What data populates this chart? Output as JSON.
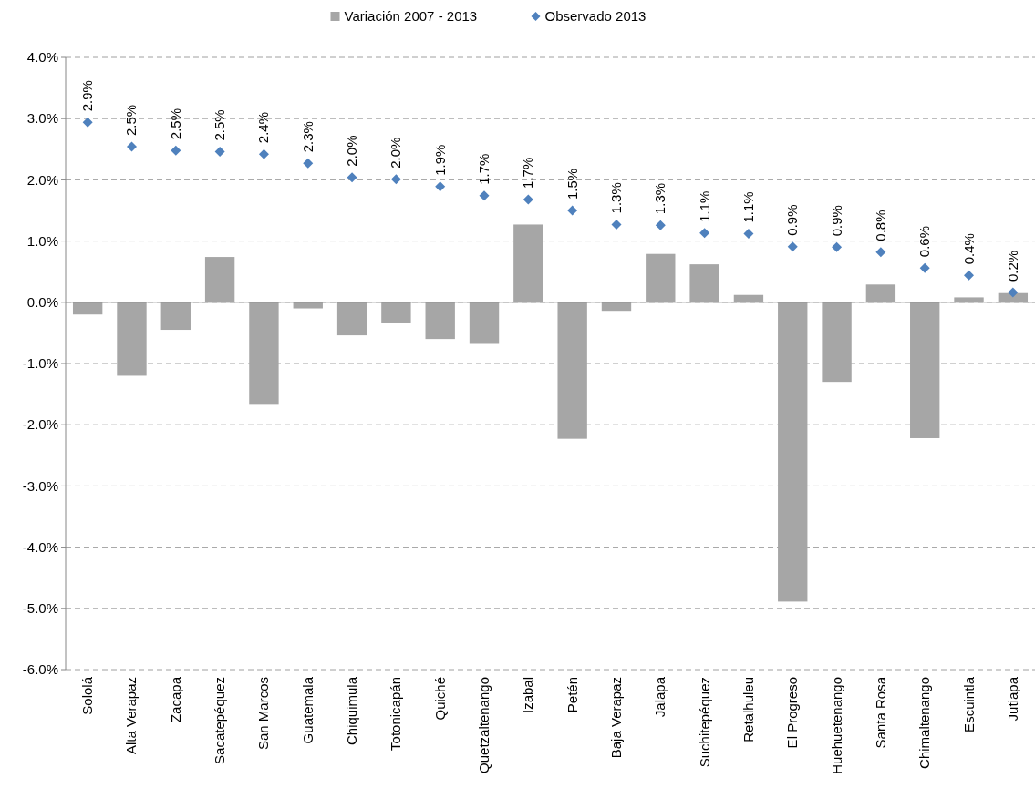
{
  "chart_data": {
    "type": "bar",
    "categories": [
      "Sololá",
      "Alta Verapaz",
      "Zacapa",
      "Sacatepéquez",
      "San Marcos",
      "Guatemala",
      "Chiquimula",
      "Totonicapán",
      "Quiché",
      "Quetzaltenango",
      "Izabal",
      "Petén",
      "Baja Verapaz",
      "Jalapa",
      "Suchitepéquez",
      "Retalhuleu",
      "El Progreso",
      "Huehuetenango",
      "Santa Rosa",
      "Chimaltenango",
      "Escuintla",
      "Jutiapa"
    ],
    "series": [
      {
        "name": "Variación 2007 - 2013",
        "color": "#a6a6a6",
        "values": [
          -0.2,
          -1.2,
          -0.45,
          0.74,
          -1.66,
          -0.1,
          -0.54,
          -0.33,
          -0.6,
          -0.68,
          1.27,
          -2.23,
          -0.14,
          0.79,
          0.62,
          0.12,
          -4.89,
          -1.3,
          0.29,
          -2.22,
          0.08,
          0.15
        ]
      },
      {
        "name": "Observado 2013",
        "type": "scatter",
        "color": "#4f81bd",
        "marker": "diamond",
        "values": [
          2.94,
          2.54,
          2.48,
          2.46,
          2.42,
          2.27,
          2.04,
          2.01,
          1.89,
          1.74,
          1.68,
          1.5,
          1.27,
          1.26,
          1.13,
          1.12,
          0.91,
          0.9,
          0.82,
          0.56,
          0.44,
          0.16
        ],
        "value_labels": [
          "2.9%",
          "2.5%",
          "2.5%",
          "2.5%",
          "2.4%",
          "2.3%",
          "2.0%",
          "2.0%",
          "1.9%",
          "1.7%",
          "1.7%",
          "1.5%",
          "1.3%",
          "1.3%",
          "1.1%",
          "1.1%",
          "0.9%",
          "0.9%",
          "0.8%",
          "0.6%",
          "0.4%",
          "0.2%"
        ]
      }
    ],
    "ylim": [
      -6,
      4
    ],
    "yticks": [
      {
        "value": -6,
        "label": "-6.0%"
      },
      {
        "value": -5,
        "label": "-5.0%"
      },
      {
        "value": -4,
        "label": "-4.0%"
      },
      {
        "value": -3,
        "label": "-3.0%"
      },
      {
        "value": -2,
        "label": "-2.0%"
      },
      {
        "value": -1,
        "label": "-1.0%"
      },
      {
        "value": 0,
        "label": "0.0%"
      },
      {
        "value": 1,
        "label": "1.0%"
      },
      {
        "value": 2,
        "label": "2.0%"
      },
      {
        "value": 3,
        "label": "3.0%"
      },
      {
        "value": 4,
        "label": "4.0%"
      }
    ],
    "grid": "y",
    "legend": "top"
  }
}
